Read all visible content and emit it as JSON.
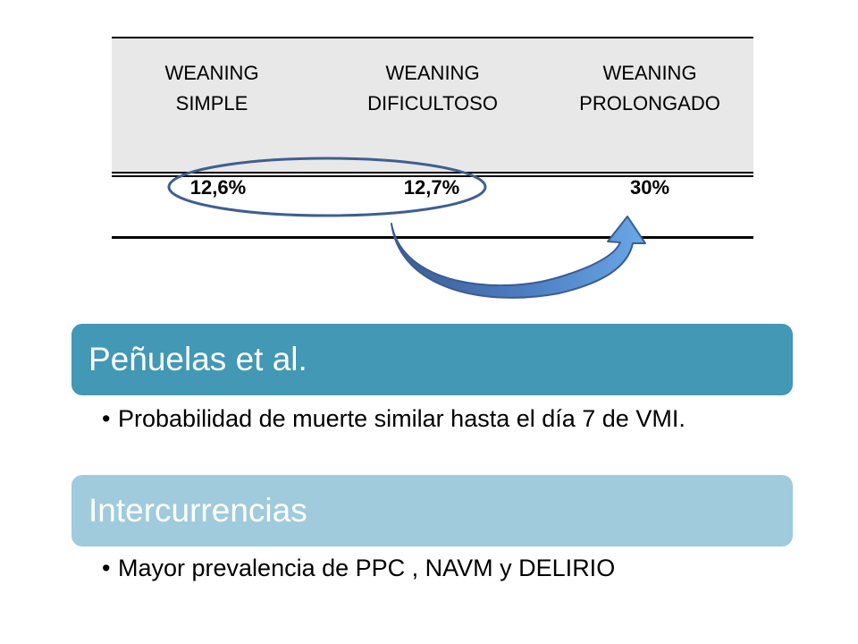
{
  "table": {
    "headers": [
      "WEANING\nSIMPLE",
      "WEANING\nDIFICULTOSO",
      "WEANING\nPROLONGADO"
    ],
    "values": [
      "12,6%",
      "12,7%",
      "30%"
    ]
  },
  "annotations": {
    "ellipse_color": "#3f5f8f",
    "arrow_color": "#3b5c94",
    "arrow_light": "#6aa8e6"
  },
  "cards": [
    {
      "title": "Peñuelas et al.",
      "color": "#4298b5",
      "bullets": [
        "Probabilidad de muerte similar hasta el día 7 de VMI."
      ]
    },
    {
      "title": "Intercurrencias",
      "color": "#a0cbdc",
      "bullets": [
        "Mayor prevalencia de PPC , NAVM y DELIRIO"
      ]
    }
  ]
}
